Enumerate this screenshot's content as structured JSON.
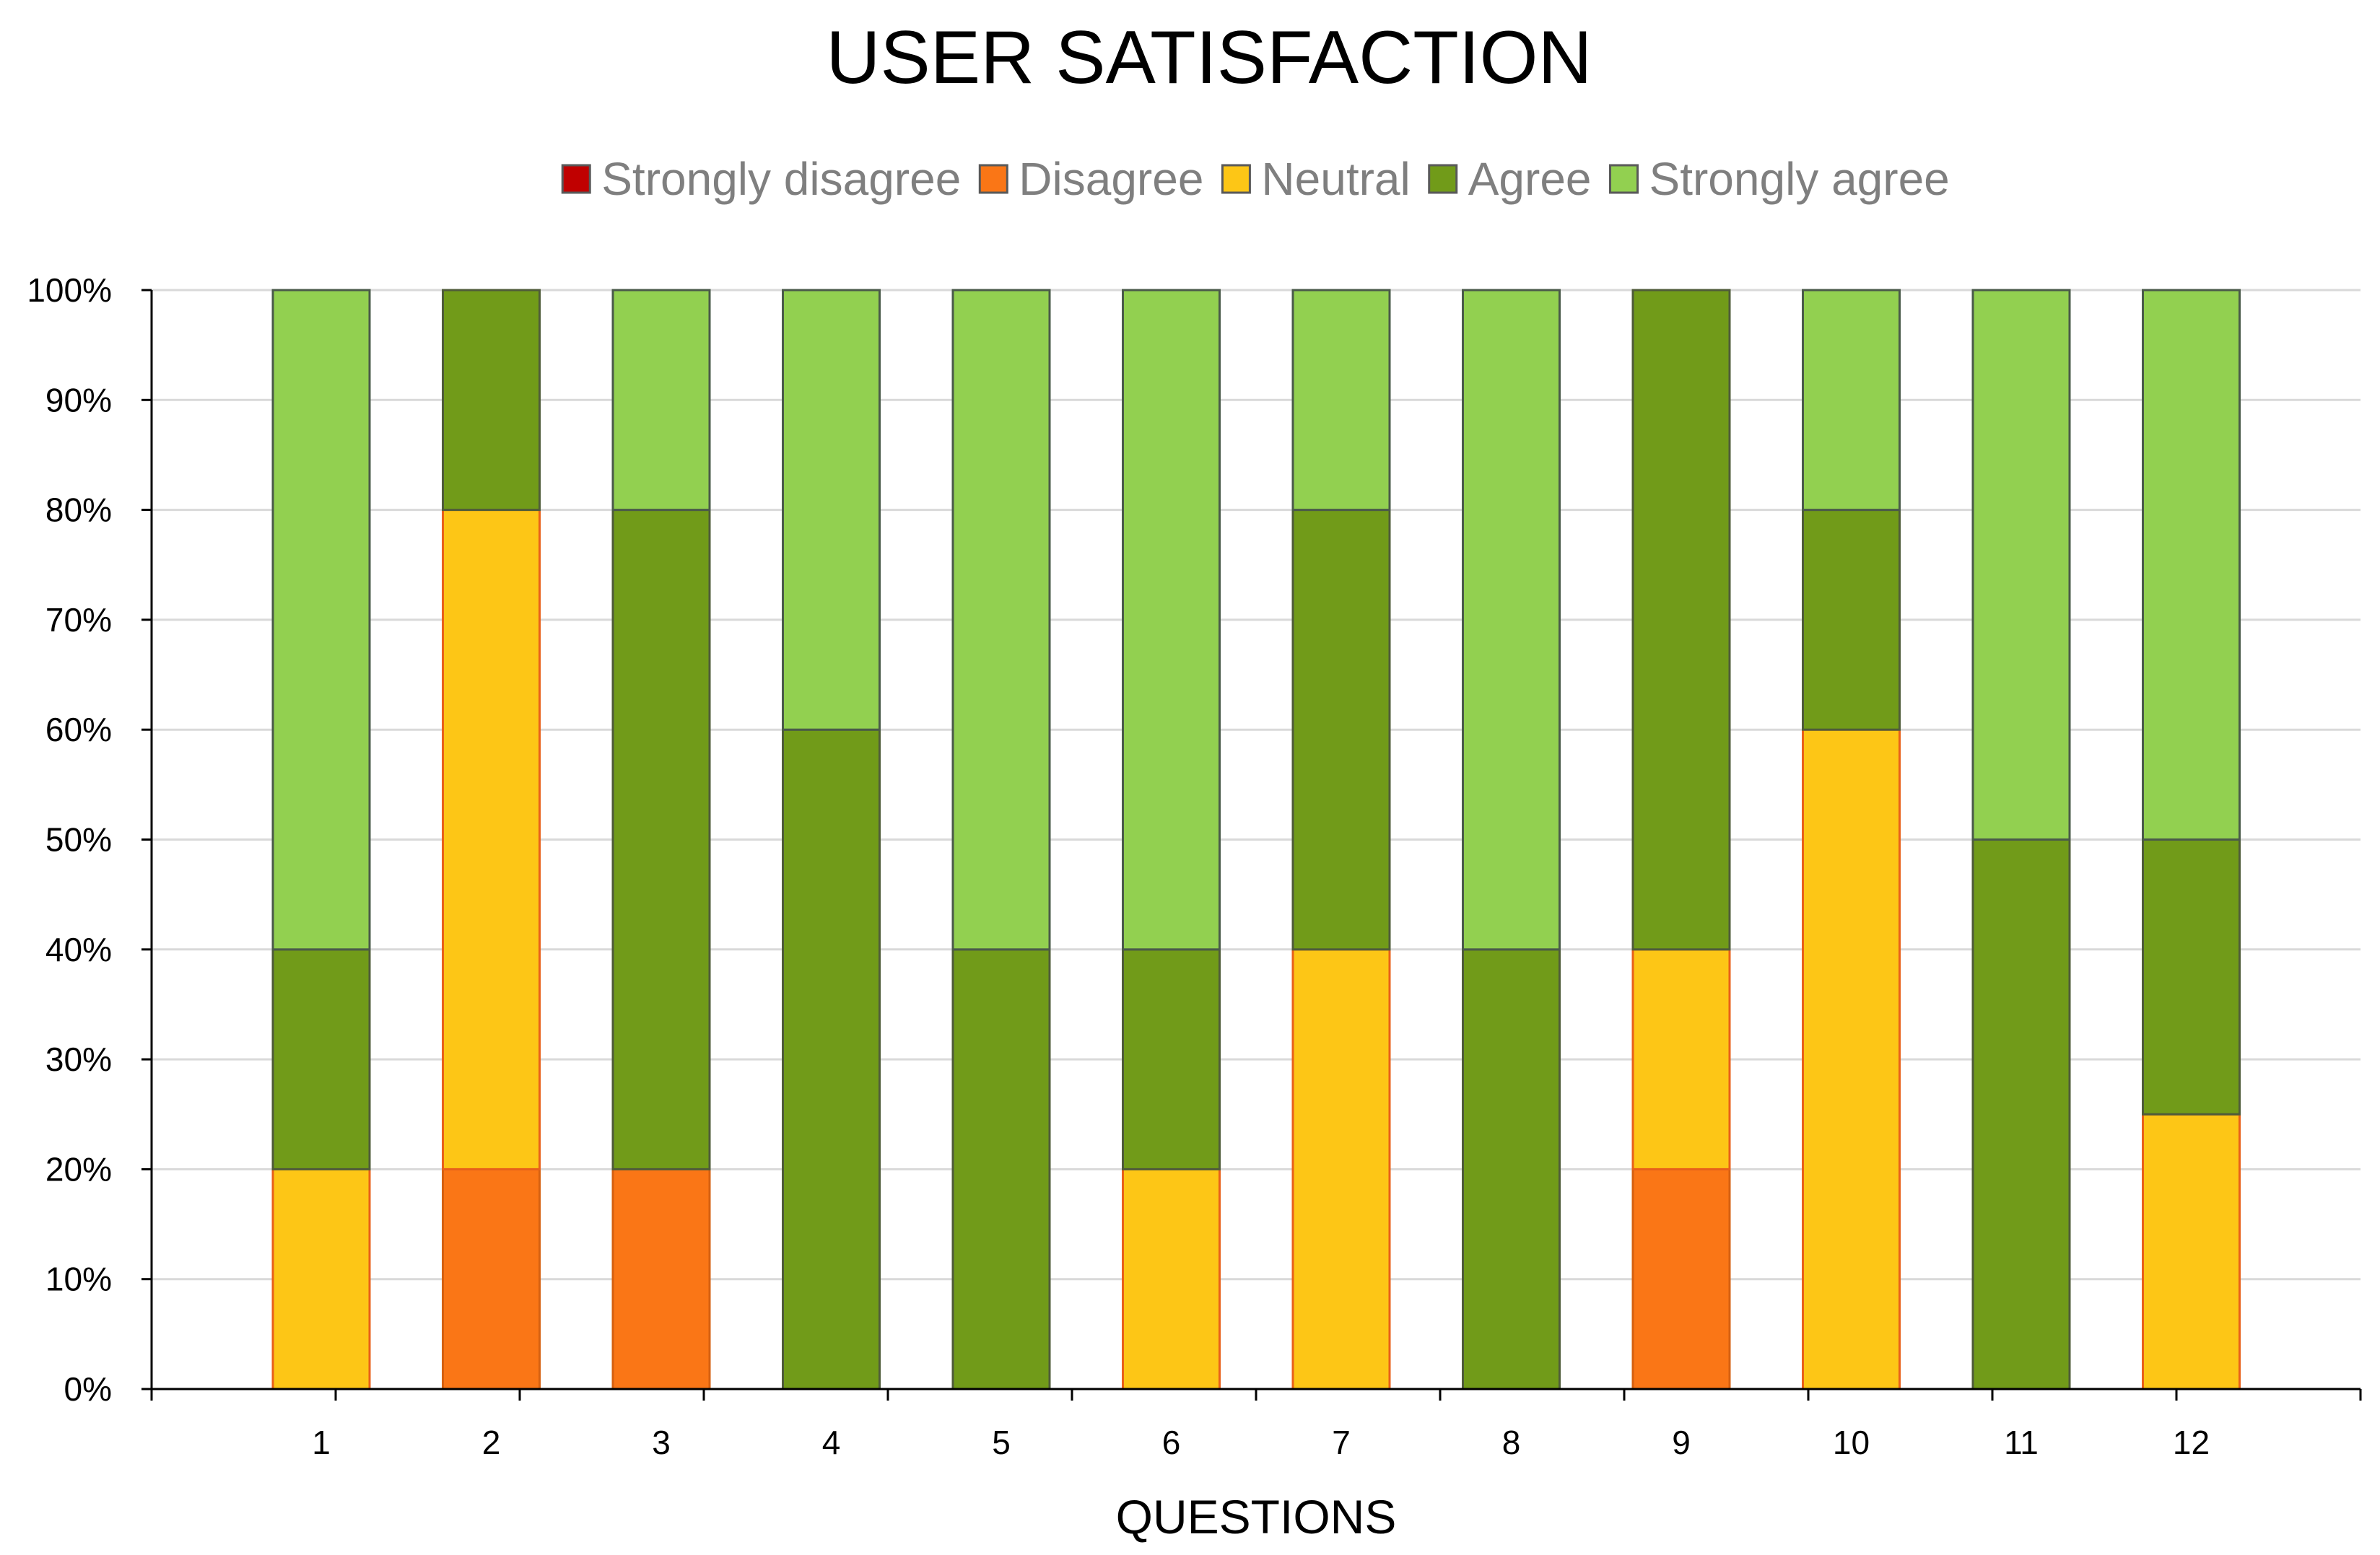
{
  "chart_data": {
    "type": "bar",
    "stacked": true,
    "title": "USER SATISFACTION",
    "xlabel": "QUESTIONS",
    "ylabel": "",
    "categories": [
      "1",
      "2",
      "3",
      "4",
      "5",
      "6",
      "7",
      "8",
      "9",
      "10",
      "11",
      "12"
    ],
    "ylim": [
      0,
      100
    ],
    "y_ticks": [
      "0%",
      "10%",
      "20%",
      "30%",
      "40%",
      "50%",
      "60%",
      "70%",
      "80%",
      "90%",
      "100%"
    ],
    "grid": true,
    "legend_position": "top-center",
    "series": [
      {
        "name": "Strongly disagree",
        "color": "#c00000",
        "values": [
          0,
          0,
          0,
          0,
          0,
          0,
          0,
          0,
          0,
          0,
          0,
          0
        ]
      },
      {
        "name": "Disagree",
        "color": "#fa7616",
        "values": [
          0,
          20,
          20,
          0,
          0,
          0,
          0,
          0,
          20,
          0,
          0,
          0
        ]
      },
      {
        "name": "Neutral",
        "color": "#fdc616",
        "values": [
          20,
          60,
          0,
          0,
          0,
          20,
          40,
          0,
          20,
          60,
          0,
          25
        ]
      },
      {
        "name": "Agree",
        "color": "#719b19",
        "values": [
          20,
          20,
          60,
          60,
          40,
          20,
          40,
          40,
          60,
          20,
          50,
          25
        ]
      },
      {
        "name": "Strongly agree",
        "color": "#92d050",
        "values": [
          60,
          0,
          20,
          40,
          60,
          60,
          20,
          60,
          0,
          20,
          50,
          50
        ]
      }
    ]
  }
}
